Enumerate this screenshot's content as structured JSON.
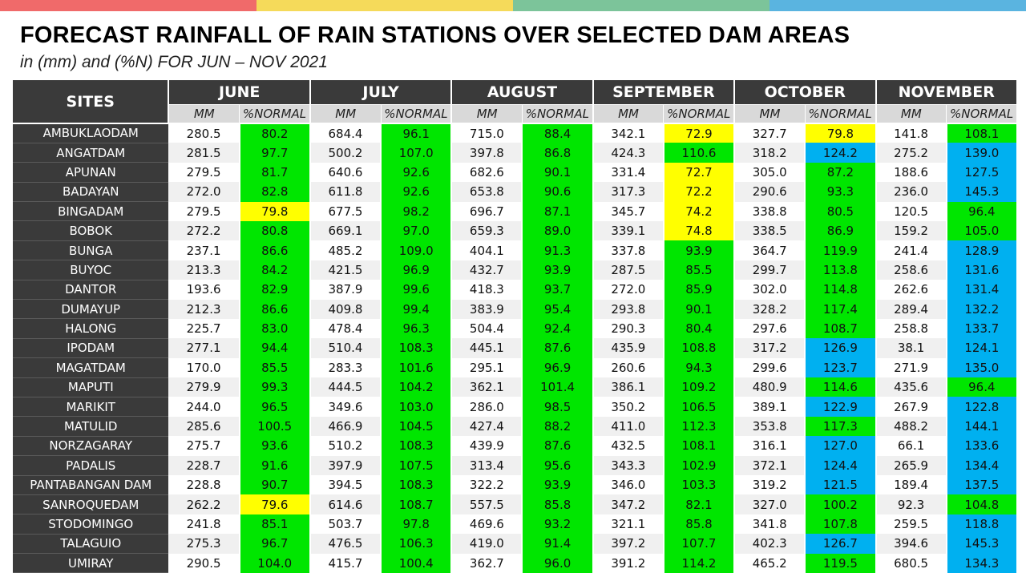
{
  "title": "FORECAST RAINFALL OF RAIN STATIONS OVER SELECTED DAM AREAS",
  "subtitle": "in (mm) and (%N) FOR JUN – NOV 2021",
  "colors": {
    "topbar": [
      "#f06a6a",
      "#f5da5a",
      "#7cc49a",
      "#5ab4e0"
    ],
    "green": "#00e600",
    "yellow": "#ffff00",
    "blue": "#00b0f0",
    "header_bg": "#3a3a3a"
  },
  "table": {
    "sites_header": "SITES",
    "months": [
      "JUNE",
      "JULY",
      "AUGUST",
      "SEPTEMBER",
      "OCTOBER",
      "NOVEMBER"
    ],
    "sub_mm": "MM",
    "sub_pct": "%NORMAL",
    "rows": [
      {
        "site": "AMBUKLAODAM",
        "values": [
          [
            "280.5",
            "80.2",
            "green"
          ],
          [
            "684.4",
            "96.1",
            "green"
          ],
          [
            "715.0",
            "88.4",
            "green"
          ],
          [
            "342.1",
            "72.9",
            "yellow"
          ],
          [
            "327.7",
            "79.8",
            "yellow"
          ],
          [
            "141.8",
            "108.1",
            "green"
          ]
        ]
      },
      {
        "site": "ANGATDAM",
        "values": [
          [
            "281.5",
            "97.7",
            "green"
          ],
          [
            "500.2",
            "107.0",
            "green"
          ],
          [
            "397.8",
            "86.8",
            "green"
          ],
          [
            "424.3",
            "110.6",
            "green"
          ],
          [
            "318.2",
            "124.2",
            "blue"
          ],
          [
            "275.2",
            "139.0",
            "blue"
          ]
        ]
      },
      {
        "site": "APUNAN",
        "values": [
          [
            "279.5",
            "81.7",
            "green"
          ],
          [
            "640.6",
            "92.6",
            "green"
          ],
          [
            "682.6",
            "90.1",
            "green"
          ],
          [
            "331.4",
            "72.7",
            "yellow"
          ],
          [
            "305.0",
            "87.2",
            "green"
          ],
          [
            "188.6",
            "127.5",
            "blue"
          ]
        ]
      },
      {
        "site": "BADAYAN",
        "values": [
          [
            "272.0",
            "82.8",
            "green"
          ],
          [
            "611.8",
            "92.6",
            "green"
          ],
          [
            "653.8",
            "90.6",
            "green"
          ],
          [
            "317.3",
            "72.2",
            "yellow"
          ],
          [
            "290.6",
            "93.3",
            "green"
          ],
          [
            "236.0",
            "145.3",
            "blue"
          ]
        ]
      },
      {
        "site": "BINGADAM",
        "values": [
          [
            "279.5",
            "79.8",
            "yellow"
          ],
          [
            "677.5",
            "98.2",
            "green"
          ],
          [
            "696.7",
            "87.1",
            "green"
          ],
          [
            "345.7",
            "74.2",
            "yellow"
          ],
          [
            "338.8",
            "80.5",
            "green"
          ],
          [
            "120.5",
            "96.4",
            "green"
          ]
        ]
      },
      {
        "site": "BOBOK",
        "values": [
          [
            "272.2",
            "80.8",
            "green"
          ],
          [
            "669.1",
            "97.0",
            "green"
          ],
          [
            "659.3",
            "89.0",
            "green"
          ],
          [
            "339.1",
            "74.8",
            "yellow"
          ],
          [
            "338.5",
            "86.9",
            "green"
          ],
          [
            "159.2",
            "105.0",
            "green"
          ]
        ]
      },
      {
        "site": "BUNGA",
        "values": [
          [
            "237.1",
            "86.6",
            "green"
          ],
          [
            "485.2",
            "109.0",
            "green"
          ],
          [
            "404.1",
            "91.3",
            "green"
          ],
          [
            "337.8",
            "93.9",
            "green"
          ],
          [
            "364.7",
            "119.9",
            "green"
          ],
          [
            "241.4",
            "128.9",
            "blue"
          ]
        ]
      },
      {
        "site": "BUYOC",
        "values": [
          [
            "213.3",
            "84.2",
            "green"
          ],
          [
            "421.5",
            "96.9",
            "green"
          ],
          [
            "432.7",
            "93.9",
            "green"
          ],
          [
            "287.5",
            "85.5",
            "green"
          ],
          [
            "299.7",
            "113.8",
            "green"
          ],
          [
            "258.6",
            "131.6",
            "blue"
          ]
        ]
      },
      {
        "site": "DANTOR",
        "values": [
          [
            "193.6",
            "82.9",
            "green"
          ],
          [
            "387.9",
            "99.6",
            "green"
          ],
          [
            "418.3",
            "93.7",
            "green"
          ],
          [
            "272.0",
            "85.9",
            "green"
          ],
          [
            "302.0",
            "114.8",
            "green"
          ],
          [
            "262.6",
            "131.4",
            "blue"
          ]
        ]
      },
      {
        "site": "DUMAYUP",
        "values": [
          [
            "212.3",
            "86.6",
            "green"
          ],
          [
            "409.8",
            "99.4",
            "green"
          ],
          [
            "383.9",
            "95.4",
            "green"
          ],
          [
            "293.8",
            "90.1",
            "green"
          ],
          [
            "328.2",
            "117.4",
            "green"
          ],
          [
            "289.4",
            "132.2",
            "blue"
          ]
        ]
      },
      {
        "site": "HALONG",
        "values": [
          [
            "225.7",
            "83.0",
            "green"
          ],
          [
            "478.4",
            "96.3",
            "green"
          ],
          [
            "504.4",
            "92.4",
            "green"
          ],
          [
            "290.3",
            "80.4",
            "green"
          ],
          [
            "297.6",
            "108.7",
            "green"
          ],
          [
            "258.8",
            "133.7",
            "blue"
          ]
        ]
      },
      {
        "site": "IPODAM",
        "values": [
          [
            "277.1",
            "94.4",
            "green"
          ],
          [
            "510.4",
            "108.3",
            "green"
          ],
          [
            "445.1",
            "87.6",
            "green"
          ],
          [
            "435.9",
            "108.8",
            "green"
          ],
          [
            "317.2",
            "126.9",
            "blue"
          ],
          [
            "38.1",
            "124.1",
            "blue"
          ]
        ]
      },
      {
        "site": "MAGATDAM",
        "values": [
          [
            "170.0",
            "85.5",
            "green"
          ],
          [
            "283.3",
            "101.6",
            "green"
          ],
          [
            "295.1",
            "96.9",
            "green"
          ],
          [
            "260.6",
            "94.3",
            "green"
          ],
          [
            "299.6",
            "123.7",
            "blue"
          ],
          [
            "271.9",
            "135.0",
            "blue"
          ]
        ]
      },
      {
        "site": "MAPUTI",
        "values": [
          [
            "279.9",
            "99.3",
            "green"
          ],
          [
            "444.5",
            "104.2",
            "green"
          ],
          [
            "362.1",
            "101.4",
            "green"
          ],
          [
            "386.1",
            "109.2",
            "green"
          ],
          [
            "480.9",
            "114.6",
            "green"
          ],
          [
            "435.6",
            "96.4",
            "green"
          ]
        ]
      },
      {
        "site": "MARIKIT",
        "values": [
          [
            "244.0",
            "96.5",
            "green"
          ],
          [
            "349.6",
            "103.0",
            "green"
          ],
          [
            "286.0",
            "98.5",
            "green"
          ],
          [
            "350.2",
            "106.5",
            "green"
          ],
          [
            "389.1",
            "122.9",
            "blue"
          ],
          [
            "267.9",
            "122.8",
            "blue"
          ]
        ]
      },
      {
        "site": "MATULID",
        "values": [
          [
            "285.6",
            "100.5",
            "green"
          ],
          [
            "466.9",
            "104.5",
            "green"
          ],
          [
            "427.4",
            "88.2",
            "green"
          ],
          [
            "411.0",
            "112.3",
            "green"
          ],
          [
            "353.8",
            "117.3",
            "green"
          ],
          [
            "488.2",
            "144.1",
            "blue"
          ]
        ]
      },
      {
        "site": "NORZAGARAY",
        "values": [
          [
            "275.7",
            "93.6",
            "green"
          ],
          [
            "510.2",
            "108.3",
            "green"
          ],
          [
            "439.9",
            "87.6",
            "green"
          ],
          [
            "432.5",
            "108.1",
            "green"
          ],
          [
            "316.1",
            "127.0",
            "blue"
          ],
          [
            "66.1",
            "133.6",
            "blue"
          ]
        ]
      },
      {
        "site": "PADALIS",
        "values": [
          [
            "228.7",
            "91.6",
            "green"
          ],
          [
            "397.9",
            "107.5",
            "green"
          ],
          [
            "313.4",
            "95.6",
            "green"
          ],
          [
            "343.3",
            "102.9",
            "green"
          ],
          [
            "372.1",
            "124.4",
            "blue"
          ],
          [
            "265.9",
            "134.4",
            "blue"
          ]
        ]
      },
      {
        "site": "PANTABANGAN DAM",
        "values": [
          [
            "228.8",
            "90.7",
            "green"
          ],
          [
            "394.5",
            "108.3",
            "green"
          ],
          [
            "322.2",
            "93.9",
            "green"
          ],
          [
            "346.0",
            "103.3",
            "green"
          ],
          [
            "319.2",
            "121.5",
            "blue"
          ],
          [
            "189.4",
            "137.5",
            "blue"
          ]
        ]
      },
      {
        "site": "SANROQUEDAM",
        "values": [
          [
            "262.2",
            "79.6",
            "yellow"
          ],
          [
            "614.6",
            "108.7",
            "green"
          ],
          [
            "557.5",
            "85.8",
            "green"
          ],
          [
            "347.2",
            "82.1",
            "green"
          ],
          [
            "327.0",
            "100.2",
            "green"
          ],
          [
            "92.3",
            "104.8",
            "green"
          ]
        ]
      },
      {
        "site": "STODOMINGO",
        "values": [
          [
            "241.8",
            "85.1",
            "green"
          ],
          [
            "503.7",
            "97.8",
            "green"
          ],
          [
            "469.6",
            "93.2",
            "green"
          ],
          [
            "321.1",
            "85.8",
            "green"
          ],
          [
            "341.8",
            "107.8",
            "green"
          ],
          [
            "259.5",
            "118.8",
            "blue"
          ]
        ]
      },
      {
        "site": "TALAGUIO",
        "values": [
          [
            "275.3",
            "96.7",
            "green"
          ],
          [
            "476.5",
            "106.3",
            "green"
          ],
          [
            "419.0",
            "91.4",
            "green"
          ],
          [
            "397.2",
            "107.7",
            "green"
          ],
          [
            "402.3",
            "126.7",
            "blue"
          ],
          [
            "394.6",
            "145.3",
            "blue"
          ]
        ]
      },
      {
        "site": "UMIRAY",
        "values": [
          [
            "290.5",
            "104.0",
            "green"
          ],
          [
            "415.7",
            "100.4",
            "green"
          ],
          [
            "362.7",
            "96.0",
            "green"
          ],
          [
            "391.2",
            "114.2",
            "green"
          ],
          [
            "465.2",
            "119.5",
            "green"
          ],
          [
            "680.5",
            "134.3",
            "blue"
          ]
        ]
      }
    ]
  }
}
